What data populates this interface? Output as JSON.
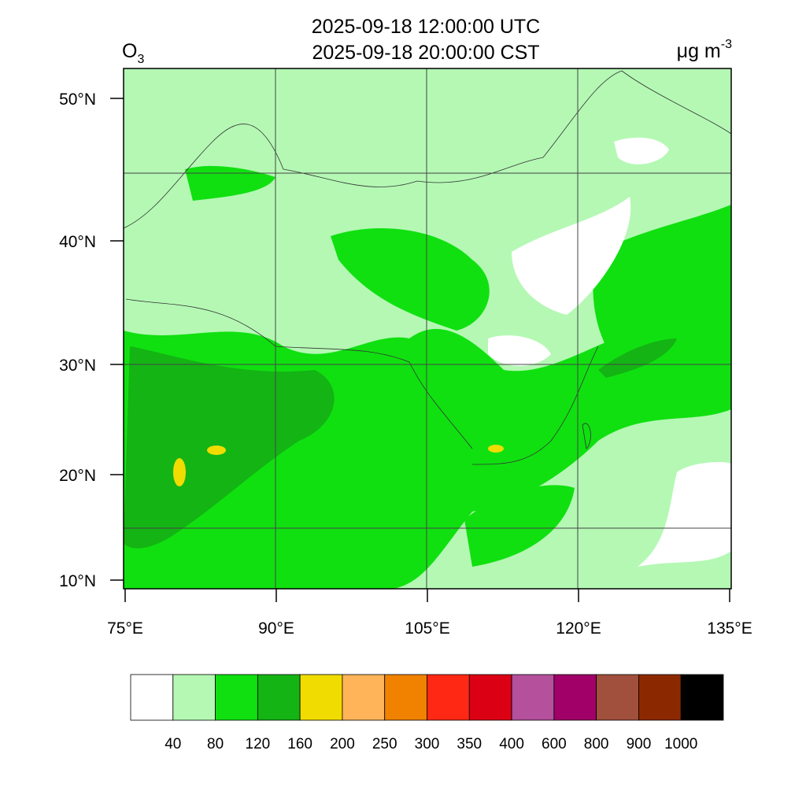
{
  "title": [
    "2025-09-18 12:00:00 UTC",
    "2025-09-18 20:00:00 CST"
  ],
  "variable": {
    "name": "O",
    "subscript": "3"
  },
  "units": {
    "name": "μg m",
    "superscript": "-3"
  },
  "lat_ticks": [
    {
      "value": 50,
      "label": "50°N"
    },
    {
      "value": 40,
      "label": "40°N"
    },
    {
      "value": 30,
      "label": "30°N"
    },
    {
      "value": 20,
      "label": "20°N"
    },
    {
      "value": 10,
      "label": "10°N"
    }
  ],
  "lon_ticks": [
    {
      "value": 75,
      "label": "75°E"
    },
    {
      "value": 90,
      "label": "90°E"
    },
    {
      "value": 105,
      "label": "105°E"
    },
    {
      "value": 120,
      "label": "120°E"
    },
    {
      "value": 135,
      "label": "135°E"
    }
  ],
  "colorbar": {
    "levels": [
      40,
      80,
      120,
      160,
      200,
      250,
      300,
      350,
      400,
      600,
      800,
      900,
      1000
    ],
    "colors": [
      "#ffffff",
      "#b4f8b4",
      "#10e010",
      "#14b414",
      "#f0dc00",
      "#ffb45a",
      "#f08200",
      "#ff2814",
      "#dc0014",
      "#b4509c",
      "#a00068",
      "#a0503c",
      "#8c2800",
      "#000000"
    ]
  }
}
